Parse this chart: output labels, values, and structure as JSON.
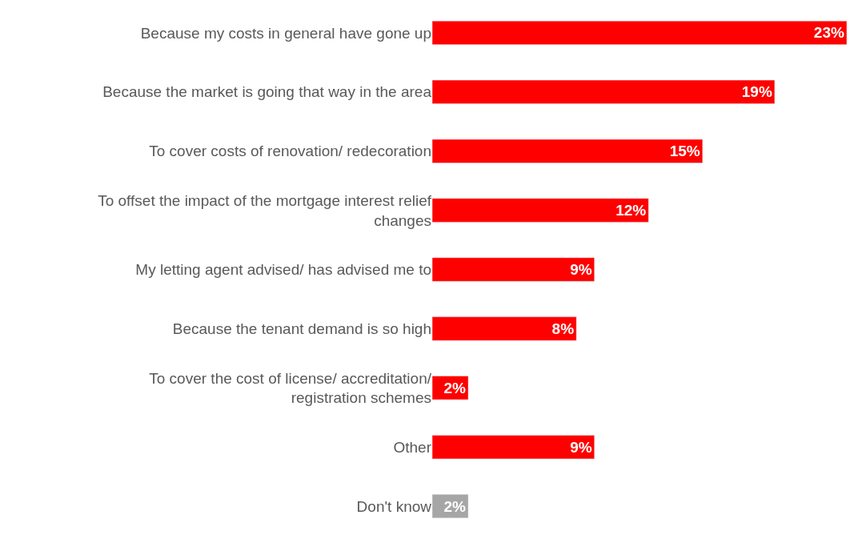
{
  "chart_data": {
    "type": "bar",
    "orientation": "horizontal",
    "categories": [
      "Because my costs in general have gone up",
      "Because the market is going that way in the area",
      "To cover costs of renovation/ redecoration",
      "To offset the impact of the mortgage interest relief changes",
      "My letting agent advised/ has advised me to",
      "Because the tenant demand is so high",
      "To cover the cost of license/ accreditation/ registration schemes",
      "Other",
      "Don't know"
    ],
    "values": [
      23,
      19,
      15,
      12,
      9,
      8,
      2,
      9,
      2
    ],
    "colors": [
      "#ff0000",
      "#ff0000",
      "#ff0000",
      "#ff0000",
      "#ff0000",
      "#ff0000",
      "#ff0000",
      "#ff0000",
      "#a6a6a6"
    ],
    "value_labels": [
      "23%",
      "19%",
      "15%",
      "12%",
      "9%",
      "8%",
      "2%",
      "9%",
      "2%"
    ],
    "xlim": [
      0,
      23
    ]
  }
}
